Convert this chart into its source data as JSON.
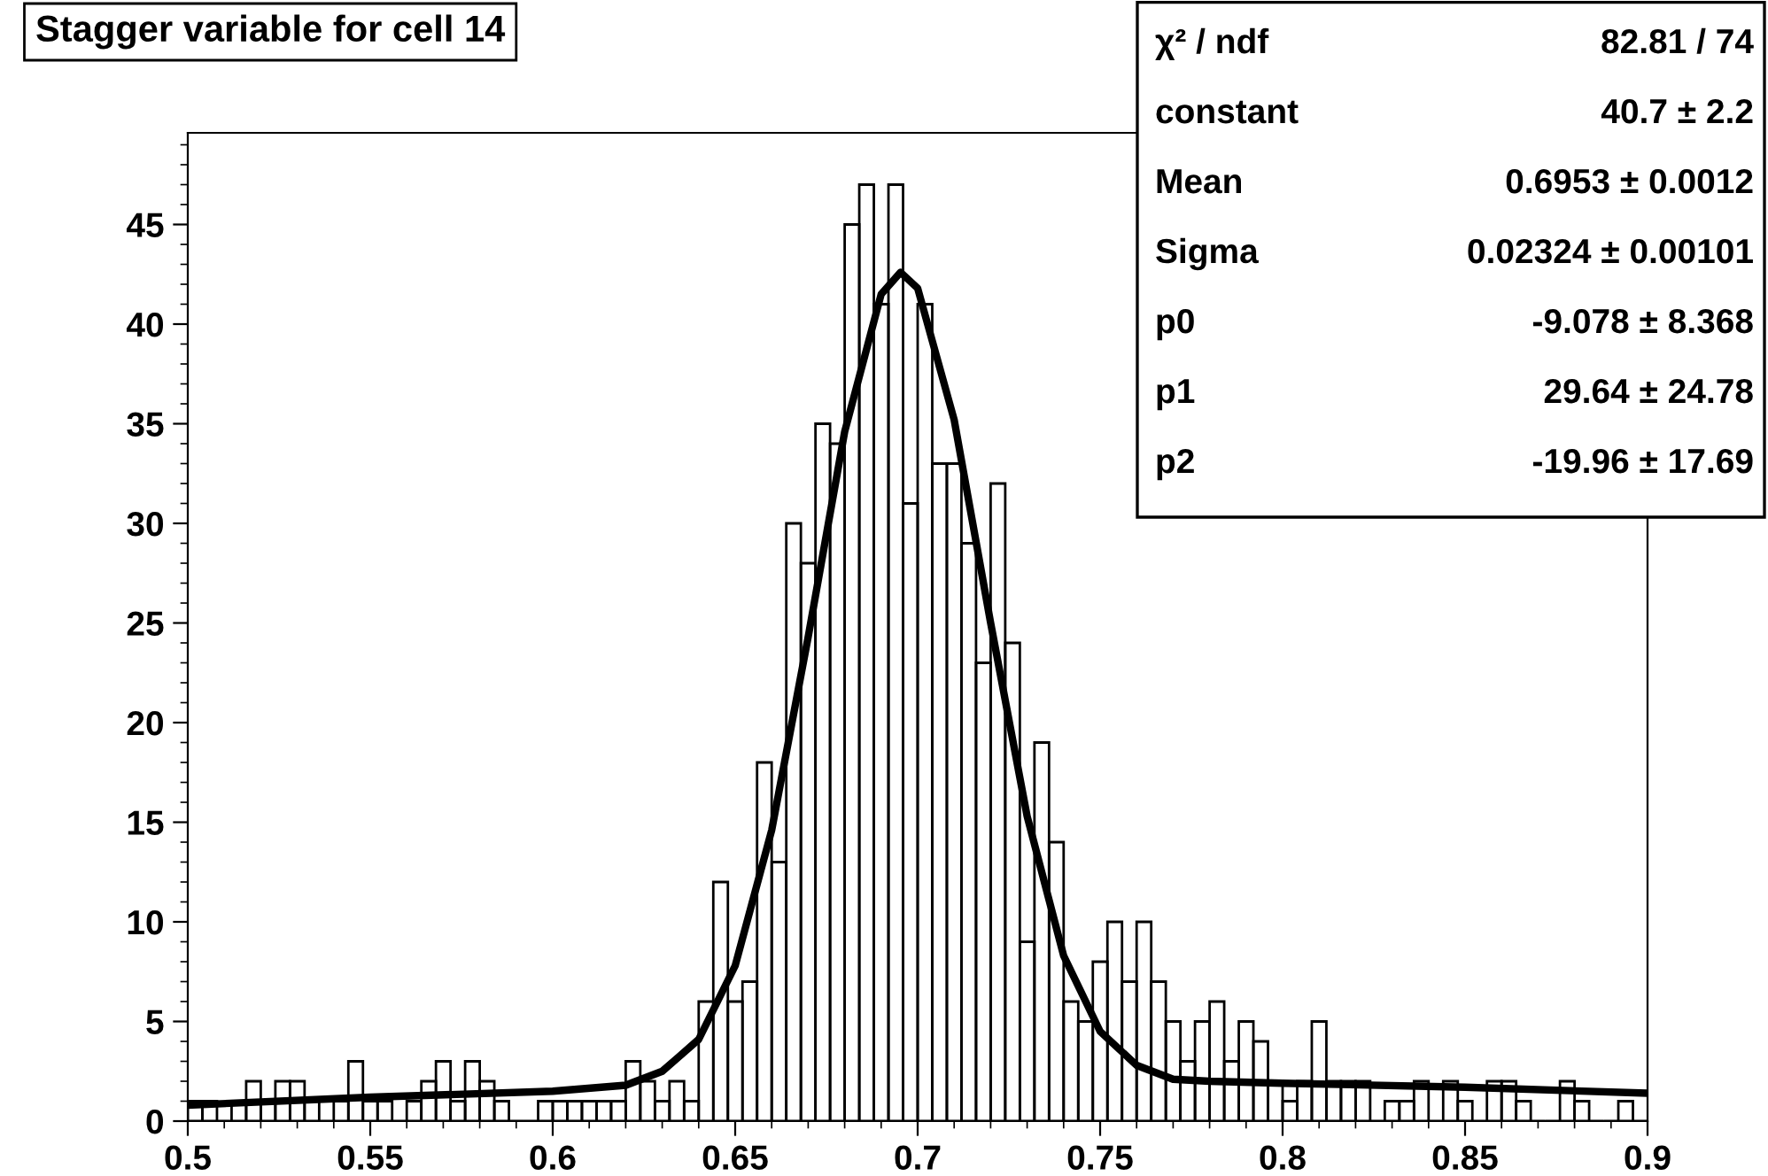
{
  "chart_data": {
    "type": "histogram",
    "title": "Stagger variable for cell 14",
    "bins": [
      0.5,
      0.504,
      0.508,
      0.512,
      0.516,
      0.52,
      0.524,
      0.528,
      0.532,
      0.536,
      0.54,
      0.544,
      0.548,
      0.552,
      0.556,
      0.56,
      0.564,
      0.568,
      0.572,
      0.576,
      0.58,
      0.584,
      0.588,
      0.592,
      0.596,
      0.6,
      0.604,
      0.608,
      0.612,
      0.616,
      0.62,
      0.624,
      0.628,
      0.632,
      0.636,
      0.64,
      0.644,
      0.648,
      0.652,
      0.656,
      0.66,
      0.664,
      0.668,
      0.672,
      0.676,
      0.68,
      0.684,
      0.688,
      0.692,
      0.696,
      0.7,
      0.704,
      0.708,
      0.712,
      0.716,
      0.72,
      0.724,
      0.728,
      0.732,
      0.736,
      0.74,
      0.744,
      0.748,
      0.752,
      0.756,
      0.76,
      0.764,
      0.768,
      0.772,
      0.776,
      0.78,
      0.784,
      0.788,
      0.792,
      0.796,
      0.8,
      0.804,
      0.808,
      0.812,
      0.816,
      0.82,
      0.824,
      0.828,
      0.832,
      0.836,
      0.84,
      0.844,
      0.848,
      0.852,
      0.856,
      0.86,
      0.864,
      0.868,
      0.872,
      0.876,
      0.88,
      0.884,
      0.888,
      0.892,
      0.896,
      0.9
    ],
    "values": [
      1,
      1,
      0,
      1,
      2,
      1,
      2,
      2,
      1,
      0,
      1,
      3,
      1,
      1,
      0,
      1,
      2,
      3,
      1,
      3,
      2,
      1,
      0,
      0,
      1,
      1,
      1,
      1,
      1,
      1,
      3,
      2,
      1,
      2,
      1,
      6,
      12,
      6,
      7,
      18,
      13,
      30,
      28,
      35,
      34,
      45,
      47,
      41,
      47,
      31,
      41,
      33,
      33,
      29,
      23,
      32,
      24,
      9,
      19,
      14,
      6,
      5,
      8,
      10,
      7,
      10,
      7,
      5,
      3,
      5,
      6,
      3,
      5,
      4,
      2,
      1,
      2,
      5,
      2,
      2,
      2,
      0,
      1,
      1,
      2,
      0,
      2,
      1,
      0,
      2,
      2,
      1,
      0,
      0,
      2,
      1,
      0,
      0,
      1,
      0
    ],
    "color": "#000000",
    "series": [
      {
        "type": "line",
        "color": "#000000",
        "x": [
          0.5,
          0.55,
          0.6,
          0.62,
          0.63,
          0.64,
          0.65,
          0.66,
          0.67,
          0.68,
          0.69,
          0.6953,
          0.7,
          0.71,
          0.72,
          0.73,
          0.74,
          0.75,
          0.76,
          0.77,
          0.78,
          0.8,
          0.85,
          0.9
        ],
        "values": [
          0.8,
          1.2,
          1.5,
          1.8,
          2.5,
          4.1,
          7.8,
          14.6,
          24.3,
          34.6,
          41.5,
          42.6,
          41.8,
          35.2,
          25.0,
          15.3,
          8.3,
          4.5,
          2.8,
          2.1,
          2.0,
          1.9,
          1.7,
          1.4
        ]
      }
    ],
    "xlim": [
      0.5,
      0.9
    ],
    "xticks": [
      0.5,
      0.55,
      0.6,
      0.65,
      0.7,
      0.75,
      0.8,
      0.85,
      0.9
    ],
    "ylim": [
      0,
      49.6
    ],
    "yticks": [
      0,
      5,
      10,
      15,
      20,
      25,
      30,
      35,
      40,
      45
    ],
    "grid": false,
    "legend": false,
    "annotations": [
      "χ² / ndf",
      "82.81 / 74",
      "constant",
      "40.7 ± 2.2",
      "Mean",
      "0.6953 ± 0.0012",
      "Sigma",
      "0.02324 ± 0.00101",
      "p0",
      "-9.078 ± 8.368",
      "p1",
      "29.64 ± 24.78",
      "p2",
      "-19.96 ± 17.69"
    ]
  }
}
